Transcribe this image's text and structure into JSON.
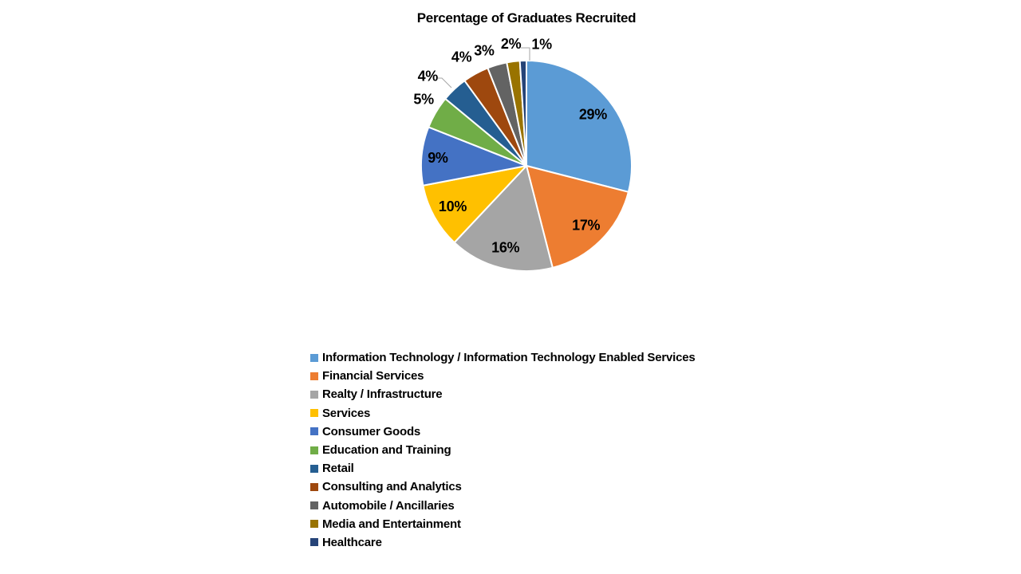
{
  "chart_data": {
    "type": "pie",
    "title": "Percentage of Graduates Recruited",
    "categories": [
      "Information Technology / Information Technology Enabled Services",
      "Financial Services",
      "Realty / Infrastructure",
      "Services",
      "Consumer Goods",
      "Education and Training",
      "Retail",
      "Consulting and Analytics",
      "Automobile / Ancillaries",
      "Media and Entertainment",
      "Healthcare"
    ],
    "values": [
      29,
      17,
      16,
      10,
      9,
      5,
      4,
      4,
      3,
      2,
      1
    ],
    "labels": [
      "29%",
      "17%",
      "16%",
      "10%",
      "9%",
      "5%",
      "4%",
      "4%",
      "3%",
      "2%",
      "1%"
    ],
    "colors": [
      "#5B9BD5",
      "#ED7D31",
      "#A5A5A5",
      "#FFC000",
      "#4472C4",
      "#70AD47",
      "#255E91",
      "#9E480E",
      "#636363",
      "#997300",
      "#264478"
    ],
    "start_angle": 0,
    "direction": "clockwise",
    "slice_border_color": "#FFFFFF",
    "leader_line_color": "#A6A6A6",
    "label_color": "#000000",
    "legend_position": "bottom-left",
    "background": "#FFFFFF"
  }
}
